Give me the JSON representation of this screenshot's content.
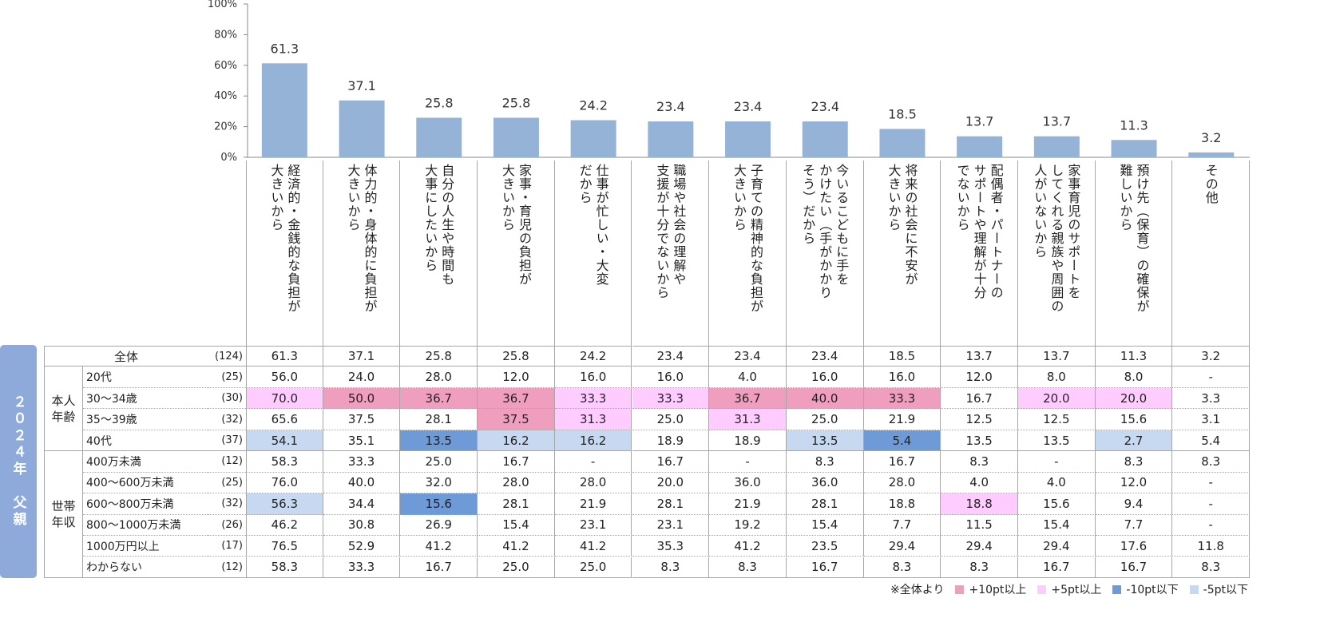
{
  "chart_data": {
    "type": "bar",
    "categories": [
      "経済的・金銭的な負担が\n大きいから",
      "体力的・身体的に負担が\n大きいから",
      "自分の人生や時間も\n大事にしたいから",
      "家事・育児の負担が\n大きいから",
      "仕事が忙しい・大変\nだから",
      "職場や社会の理解や\n支援が十分でないから",
      "子育ての精神的な負担が\n大きいから",
      "今いるこどもに手を\nかけたい（手がかかり\nそう）だから",
      "将来の社会に不安が\n大きいから",
      "配偶者・パートナーの\nサポートや理解が十分\nでないから",
      "家事育児のサポートを\nしてくれる親族や周囲の\n人がいないから",
      "預け先（保育）の確保が\n難しいから",
      "その他"
    ],
    "values": [
      61.3,
      37.1,
      25.8,
      25.8,
      24.2,
      23.4,
      23.4,
      23.4,
      18.5,
      13.7,
      13.7,
      11.3,
      3.2
    ],
    "color": "#95b3d7",
    "ylim": [
      0,
      100
    ],
    "yticks": [
      {
        "value": 0,
        "label": "0%"
      },
      {
        "value": 20,
        "label": "20%"
      },
      {
        "value": 40,
        "label": "40%"
      },
      {
        "value": 60,
        "label": "60%"
      },
      {
        "value": 80,
        "label": "80%"
      },
      {
        "value": 100,
        "label": "100%"
      }
    ]
  },
  "table": {
    "side_label": "２０２４年　父親",
    "total": {
      "label": "全体",
      "n": "(124)",
      "values": [
        "61.3",
        "37.1",
        "25.8",
        "25.8",
        "24.2",
        "23.4",
        "23.4",
        "23.4",
        "18.5",
        "13.7",
        "13.7",
        "11.3",
        "3.2"
      ]
    },
    "groups": [
      {
        "label": "本人\n年齢",
        "rows": [
          {
            "label": "20代",
            "n": "(25)",
            "values": [
              "56.0",
              "24.0",
              "28.0",
              "12.0",
              "16.0",
              "16.0",
              "4.0",
              "16.0",
              "16.0",
              "12.0",
              "8.0",
              "8.0",
              "-"
            ],
            "colors": [
              null,
              null,
              null,
              null,
              null,
              null,
              null,
              null,
              null,
              null,
              null,
              null,
              null
            ]
          },
          {
            "label": "30～34歳",
            "n": "(30)",
            "values": [
              "70.0",
              "50.0",
              "36.7",
              "36.7",
              "33.3",
              "33.3",
              "36.7",
              "40.0",
              "33.3",
              "16.7",
              "20.0",
              "20.0",
              "3.3"
            ],
            "colors": [
              "#ffccff",
              "#f09ebe",
              "#f09ebe",
              "#f09ebe",
              "#ffccff",
              "#ffccff",
              "#f09ebe",
              "#f09ebe",
              "#f09ebe",
              null,
              "#ffccff",
              "#ffccff",
              null
            ]
          },
          {
            "label": "35～39歳",
            "n": "(32)",
            "values": [
              "65.6",
              "37.5",
              "28.1",
              "37.5",
              "31.3",
              "25.0",
              "31.3",
              "25.0",
              "21.9",
              "12.5",
              "12.5",
              "15.6",
              "3.1"
            ],
            "colors": [
              null,
              null,
              null,
              "#f09ebe",
              "#ffccff",
              null,
              "#ffccff",
              null,
              null,
              null,
              null,
              null,
              null
            ]
          },
          {
            "label": "40代",
            "n": "(37)",
            "values": [
              "54.1",
              "35.1",
              "13.5",
              "16.2",
              "16.2",
              "18.9",
              "18.9",
              "13.5",
              "5.4",
              "13.5",
              "13.5",
              "2.7",
              "5.4"
            ],
            "colors": [
              "#c6d9f0",
              null,
              "#6f9ad8",
              "#c6d9f0",
              "#c6d9f0",
              null,
              null,
              "#c6d9f0",
              "#6f9ad8",
              null,
              null,
              "#c6d9f0",
              null
            ]
          }
        ]
      },
      {
        "label": "世帯\n年収",
        "rows": [
          {
            "label": "400万未満",
            "n": "(12)",
            "values": [
              "58.3",
              "33.3",
              "25.0",
              "16.7",
              "-",
              "16.7",
              "-",
              "8.3",
              "16.7",
              "8.3",
              "-",
              "8.3",
              "8.3"
            ],
            "colors": [
              null,
              null,
              null,
              null,
              null,
              null,
              null,
              null,
              null,
              null,
              null,
              null,
              null
            ]
          },
          {
            "label": "400～600万未満",
            "n": "(25)",
            "values": [
              "76.0",
              "40.0",
              "32.0",
              "28.0",
              "28.0",
              "20.0",
              "36.0",
              "36.0",
              "28.0",
              "4.0",
              "4.0",
              "12.0",
              "-"
            ],
            "colors": [
              null,
              null,
              null,
              null,
              null,
              null,
              null,
              null,
              null,
              null,
              null,
              null,
              null
            ]
          },
          {
            "label": "600～800万未満",
            "n": "(32)",
            "values": [
              "56.3",
              "34.4",
              "15.6",
              "28.1",
              "21.9",
              "28.1",
              "21.9",
              "28.1",
              "18.8",
              "18.8",
              "15.6",
              "9.4",
              "-"
            ],
            "colors": [
              "#c6d9f0",
              null,
              "#6f9ad8",
              null,
              null,
              null,
              null,
              null,
              null,
              "#ffccff",
              null,
              null,
              null
            ]
          },
          {
            "label": "800～1000万未満",
            "n": "(26)",
            "values": [
              "46.2",
              "30.8",
              "26.9",
              "15.4",
              "23.1",
              "23.1",
              "19.2",
              "15.4",
              "7.7",
              "11.5",
              "15.4",
              "7.7",
              "-"
            ],
            "colors": [
              null,
              null,
              null,
              null,
              null,
              null,
              null,
              null,
              null,
              null,
              null,
              null,
              null
            ]
          },
          {
            "label": "1000万円以上",
            "n": "(17)",
            "values": [
              "76.5",
              "52.9",
              "41.2",
              "41.2",
              "41.2",
              "35.3",
              "41.2",
              "23.5",
              "29.4",
              "29.4",
              "29.4",
              "17.6",
              "11.8"
            ],
            "colors": [
              null,
              null,
              null,
              null,
              null,
              null,
              null,
              null,
              null,
              null,
              null,
              null,
              null
            ]
          },
          {
            "label": "わからない",
            "n": "(12)",
            "values": [
              "58.3",
              "33.3",
              "16.7",
              "25.0",
              "25.0",
              "8.3",
              "8.3",
              "16.7",
              "8.3",
              "8.3",
              "16.7",
              "16.7",
              "8.3"
            ],
            "colors": [
              null,
              null,
              null,
              null,
              null,
              null,
              null,
              null,
              null,
              null,
              null,
              null,
              null
            ]
          }
        ]
      }
    ]
  },
  "legend": {
    "note": "※全体より",
    "items": [
      {
        "label": "+10pt以上",
        "color": "#f09ebe"
      },
      {
        "label": "+5pt以上",
        "color": "#ffccff"
      },
      {
        "label": "-10pt以下",
        "color": "#6f9ad8"
      },
      {
        "label": "-5pt以下",
        "color": "#c6d9f0"
      }
    ]
  }
}
